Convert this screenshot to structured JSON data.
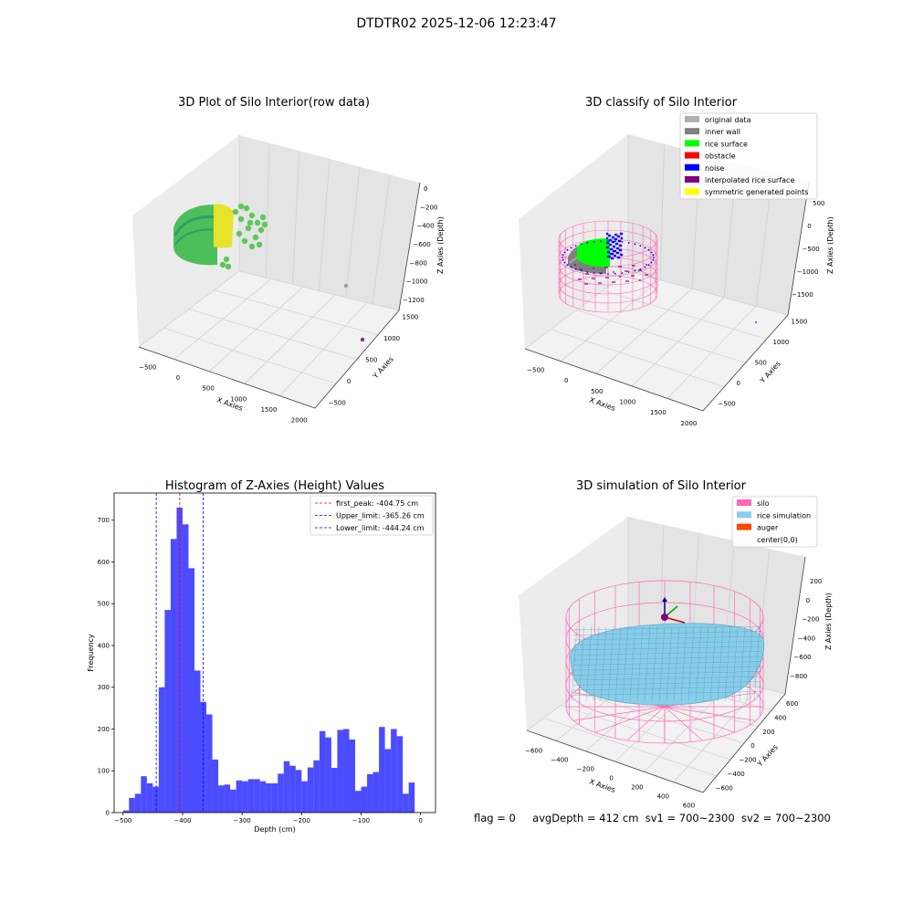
{
  "figure": {
    "suptitle": "DTDTR02 2025-12-06 12:23:47",
    "status_line": {
      "flag": "flag = 0",
      "avg_depth": "avgDepth = 412 cm",
      "sv1": "sv1 = 700~2300",
      "sv2": "sv2 = 700~2300"
    }
  },
  "panels": {
    "raw": {
      "title": "3D Plot of Silo Interior(row data)",
      "xlabel": "X Axies",
      "ylabel": "Y Axies",
      "zlabel": "Z Axies (Depth)",
      "x_ticks": [
        "−500",
        "0",
        "500",
        "1000",
        "1500",
        "2000"
      ],
      "y_ticks": [
        "−500",
        "0",
        "500",
        "1000",
        "1500"
      ],
      "z_ticks": [
        "0",
        "−200",
        "−400",
        "−600",
        "−800",
        "−1000",
        "−1200"
      ],
      "colors": {
        "points_main": "#5cc85a",
        "points_yellow": "#e6e42a",
        "outlier_gray": "#9a9a9a",
        "outlier_purple": "#7b3294"
      }
    },
    "classify": {
      "title": "3D classify of Silo Interior",
      "xlabel": "X Axies",
      "ylabel": "Y Axies",
      "zlabel": "Z Axies (Depth)",
      "x_ticks": [
        "−500",
        "0",
        "500",
        "1000",
        "1500",
        "2000"
      ],
      "y_ticks": [
        "−500",
        "0",
        "500",
        "1000",
        "1500"
      ],
      "z_ticks": [
        "500",
        "0",
        "−500",
        "−1000",
        "−1500"
      ],
      "legend": [
        {
          "label": "original data",
          "color": "#b0b0b0"
        },
        {
          "label": "inner wall",
          "color": "#808080"
        },
        {
          "label": "rice surface",
          "color": "#00ff00"
        },
        {
          "label": "obstacle",
          "color": "#ff0000"
        },
        {
          "label": "noise",
          "color": "#0000ff"
        },
        {
          "label": "interpolated rice surface",
          "color": "#800080"
        },
        {
          "label": "symmetric generated points",
          "color": "#ffff00"
        }
      ],
      "colors": {
        "wireframe": "#ff69b4"
      }
    },
    "histogram": {
      "title": "Histogram of Z-Axies (Height) Values",
      "xlabel": "Depth (cm)",
      "ylabel": "Frequency",
      "legend": [
        {
          "label": "first_peak: -404.75 cm",
          "color": "#ff0000"
        },
        {
          "label": "Upper_limit: -365.26 cm",
          "color": "#0000ff"
        },
        {
          "label": "Lower_limit: -444.24 cm",
          "color": "#0000ff"
        }
      ]
    },
    "simulation": {
      "title": "3D simulation of Silo Interior",
      "xlabel": "X Axies",
      "ylabel": "Y Axies",
      "zlabel": "Z Axies (Depth)",
      "x_ticks": [
        "−600",
        "−400",
        "−200",
        "0",
        "200",
        "400",
        "600"
      ],
      "y_ticks": [
        "−600",
        "−400",
        "−200",
        "0",
        "200",
        "400",
        "600"
      ],
      "z_ticks": [
        "200",
        "0",
        "−200",
        "−400",
        "−600",
        "−800"
      ],
      "legend": [
        {
          "label": "silo",
          "color": "#ff69b4"
        },
        {
          "label": "rice simulation",
          "color": "#87ceeb"
        },
        {
          "label": "auger",
          "color": "#ff4500"
        },
        {
          "label": "center(0,0)",
          "color": "#ffffff"
        }
      ]
    }
  },
  "chart_data": {
    "type": "bar",
    "title": "Histogram of Z-Axies (Height) Values",
    "xlabel": "Depth (cm)",
    "ylabel": "Frequency",
    "xlim": [
      -515,
      25
    ],
    "ylim": [
      0,
      765
    ],
    "x_ticks": [
      -500,
      -400,
      -300,
      -200,
      -100,
      0
    ],
    "y_ticks": [
      0,
      100,
      200,
      300,
      400,
      500,
      600,
      700
    ],
    "bin_width": 10,
    "bin_start": -500,
    "values": [
      5,
      35,
      45,
      87,
      70,
      62,
      300,
      485,
      655,
      730,
      690,
      585,
      340,
      265,
      235,
      127,
      65,
      67,
      55,
      77,
      75,
      80,
      80,
      75,
      70,
      70,
      93,
      123,
      112,
      102,
      75,
      108,
      125,
      195,
      180,
      107,
      198,
      200,
      175,
      52,
      62,
      92,
      97,
      205,
      152,
      200,
      183,
      45,
      72
    ],
    "bar_color": "#0000ff",
    "bar_opacity": 0.7,
    "vlines": [
      {
        "name": "first_peak",
        "x": -404.75,
        "color": "#ff0000"
      },
      {
        "name": "Upper_limit",
        "x": -365.26,
        "color": "#0000ff"
      },
      {
        "name": "Lower_limit",
        "x": -444.24,
        "color": "#0000ff"
      }
    ],
    "legend_position": "top-right",
    "grid": false
  }
}
